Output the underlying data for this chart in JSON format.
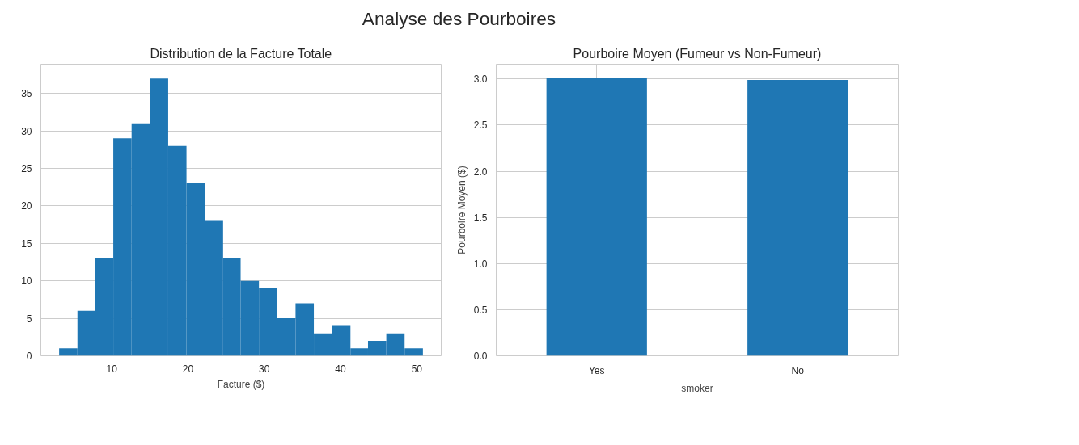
{
  "chart_data": [
    {
      "type": "histogram",
      "title": "Distribution de la Facture Totale",
      "xlabel": "Facture ($)",
      "annotations": [
        "Analyse des Pourboires"
      ],
      "bins": [
        3.1,
        5.5,
        7.8,
        10.2,
        12.6,
        15.0,
        17.4,
        19.8,
        22.2,
        24.6,
        26.9,
        29.3,
        31.7,
        34.1,
        36.5,
        38.9,
        41.3,
        43.6,
        46.0,
        48.4,
        50.8
      ],
      "values": [
        1,
        6,
        13,
        29,
        31,
        37,
        28,
        23,
        18,
        13,
        10,
        9,
        5,
        7,
        3,
        4,
        1,
        2,
        3,
        1
      ],
      "color": "#1f77b4",
      "xlim": [
        0.7,
        53.2
      ],
      "xticks": [
        10,
        20,
        30,
        40,
        50
      ],
      "ylim": [
        0,
        38.9
      ],
      "yticks": [
        0,
        5,
        10,
        15,
        20,
        25,
        30,
        35
      ],
      "grid": true
    },
    {
      "type": "bar",
      "title": "Pourboire Moyen (Fumeur vs Non-Fumeur)",
      "xlabel": "smoker",
      "ylabel": "Pourboire Moyen ($)",
      "categories": [
        "Yes",
        "No"
      ],
      "values": [
        3.01,
        2.99
      ],
      "color": "#1f77b4",
      "ylim": [
        0,
        3.16
      ],
      "yticks": [
        {
          "value": 0,
          "label": "0.0"
        },
        {
          "value": 0.5,
          "label": "0.5"
        },
        {
          "value": 1,
          "label": "1.0"
        },
        {
          "value": 1.5,
          "label": "1.5"
        },
        {
          "value": 2,
          "label": "2.0"
        },
        {
          "value": 2.5,
          "label": "2.5"
        },
        {
          "value": 3,
          "label": "3.0"
        }
      ],
      "grid": true
    }
  ]
}
